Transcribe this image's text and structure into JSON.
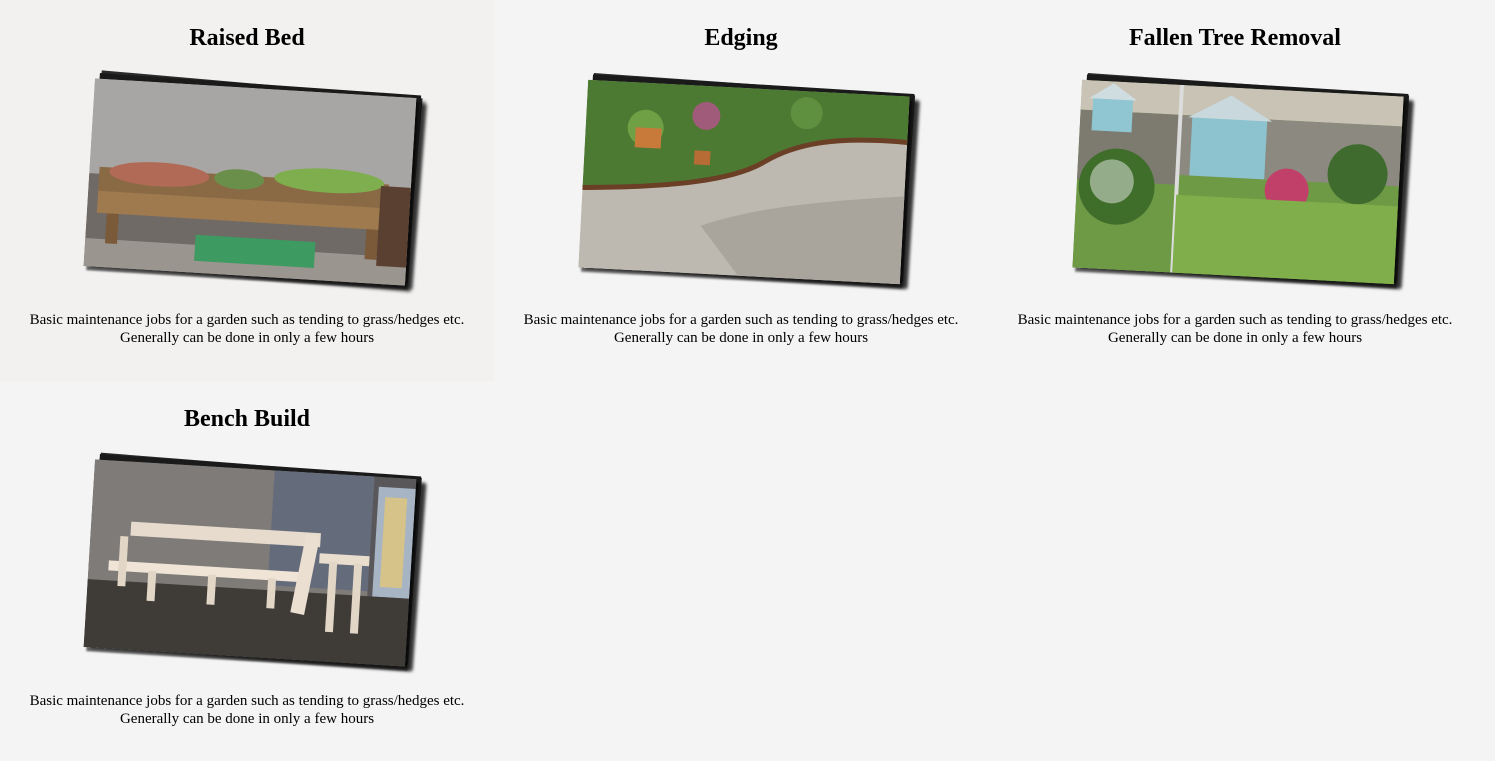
{
  "services": [
    {
      "title": "Raised Bed",
      "description_line1": "Basic maintenance jobs for a garden such as tending to grass/hedges etc.",
      "description_line2": "Generally can be done in only a few hours"
    },
    {
      "title": "Edging",
      "description_line1": "Basic maintenance jobs for a garden such as tending to grass/hedges etc.",
      "description_line2": "Generally can be done in only a few hours"
    },
    {
      "title": "Fallen Tree Removal",
      "description_line1": "Basic maintenance jobs for a garden such as tending to grass/hedges etc.",
      "description_line2": "Generally can be done in only a few hours"
    },
    {
      "title": "Bench Build",
      "description_line1": "Basic maintenance jobs for a garden such as tending to grass/hedges etc.",
      "description_line2": "Generally can be done in only a few hours"
    }
  ]
}
